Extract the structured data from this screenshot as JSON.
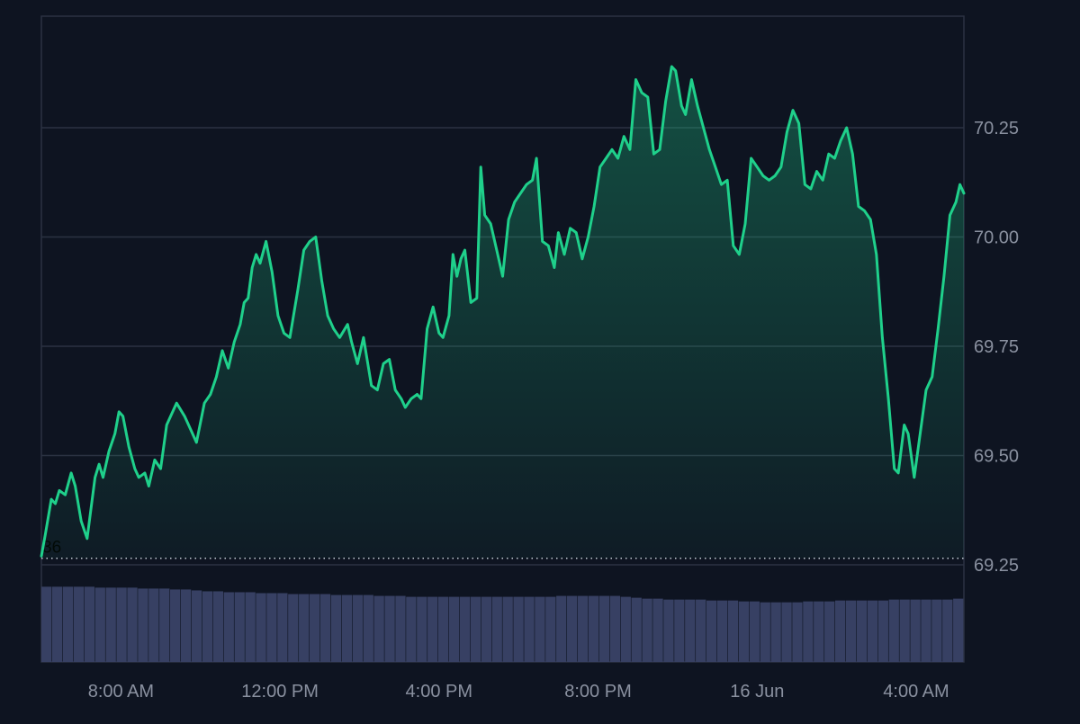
{
  "colors": {
    "background": "#0e1421",
    "line": "#1fd08b",
    "area_top": "#1fd08b",
    "grid": "#2b3242",
    "axis_text": "#8a91a0",
    "volume": "#374063",
    "baseline_dots": "#c7ccd6"
  },
  "chart_data": {
    "type": "area",
    "title": "",
    "xlabel": "",
    "ylabel": "",
    "ylim": [
      69.0,
      70.5
    ],
    "y_ticks": [
      {
        "value": 69.25,
        "label": "69.25"
      },
      {
        "value": 69.5,
        "label": "69.50"
      },
      {
        "value": 69.75,
        "label": "69.75"
      },
      {
        "value": 70.0,
        "label": "70.00"
      },
      {
        "value": 70.25,
        "label": "70.25"
      }
    ],
    "x_range": [
      6.0,
      29.2
    ],
    "x_ticks": [
      {
        "value": 8,
        "label": "8:00 AM"
      },
      {
        "value": 12,
        "label": "12:00 PM"
      },
      {
        "value": 16,
        "label": "4:00 PM"
      },
      {
        "value": 20,
        "label": "8:00 PM"
      },
      {
        "value": 24,
        "label": "16 Jun"
      },
      {
        "value": 28,
        "label": "4:00 AM"
      }
    ],
    "baseline": {
      "value": 69.265,
      "label": "36"
    },
    "series": [
      {
        "values": [
          [
            6.0,
            69.27
          ],
          [
            6.1,
            69.32
          ],
          [
            6.25,
            69.4
          ],
          [
            6.35,
            69.39
          ],
          [
            6.45,
            69.42
          ],
          [
            6.6,
            69.41
          ],
          [
            6.75,
            69.46
          ],
          [
            6.85,
            69.43
          ],
          [
            7.0,
            69.35
          ],
          [
            7.15,
            69.31
          ],
          [
            7.25,
            69.38
          ],
          [
            7.35,
            69.45
          ],
          [
            7.45,
            69.48
          ],
          [
            7.55,
            69.45
          ],
          [
            7.7,
            69.51
          ],
          [
            7.85,
            69.55
          ],
          [
            7.95,
            69.6
          ],
          [
            8.05,
            69.59
          ],
          [
            8.2,
            69.52
          ],
          [
            8.35,
            69.47
          ],
          [
            8.45,
            69.45
          ],
          [
            8.6,
            69.46
          ],
          [
            8.7,
            69.43
          ],
          [
            8.85,
            69.49
          ],
          [
            9.0,
            69.47
          ],
          [
            9.15,
            69.57
          ],
          [
            9.25,
            69.59
          ],
          [
            9.4,
            69.62
          ],
          [
            9.6,
            69.59
          ],
          [
            9.75,
            69.56
          ],
          [
            9.9,
            69.53
          ],
          [
            10.1,
            69.62
          ],
          [
            10.25,
            69.64
          ],
          [
            10.4,
            69.68
          ],
          [
            10.55,
            69.74
          ],
          [
            10.7,
            69.7
          ],
          [
            10.85,
            69.76
          ],
          [
            11.0,
            69.8
          ],
          [
            11.1,
            69.85
          ],
          [
            11.2,
            69.86
          ],
          [
            11.3,
            69.93
          ],
          [
            11.4,
            69.96
          ],
          [
            11.5,
            69.94
          ],
          [
            11.65,
            69.99
          ],
          [
            11.8,
            69.92
          ],
          [
            11.95,
            69.82
          ],
          [
            12.1,
            69.78
          ],
          [
            12.25,
            69.77
          ],
          [
            12.45,
            69.88
          ],
          [
            12.6,
            69.97
          ],
          [
            12.75,
            69.99
          ],
          [
            12.9,
            70.0
          ],
          [
            13.05,
            69.9
          ],
          [
            13.2,
            69.82
          ],
          [
            13.35,
            69.79
          ],
          [
            13.5,
            69.77
          ],
          [
            13.7,
            69.8
          ],
          [
            13.8,
            69.76
          ],
          [
            13.95,
            69.71
          ],
          [
            14.1,
            69.77
          ],
          [
            14.3,
            69.66
          ],
          [
            14.45,
            69.65
          ],
          [
            14.6,
            69.71
          ],
          [
            14.75,
            69.72
          ],
          [
            14.9,
            69.65
          ],
          [
            15.05,
            69.63
          ],
          [
            15.15,
            69.61
          ],
          [
            15.3,
            69.63
          ],
          [
            15.45,
            69.64
          ],
          [
            15.55,
            69.63
          ],
          [
            15.7,
            69.79
          ],
          [
            15.85,
            69.84
          ],
          [
            16.0,
            69.78
          ],
          [
            16.1,
            69.77
          ],
          [
            16.25,
            69.82
          ],
          [
            16.35,
            69.96
          ],
          [
            16.45,
            69.91
          ],
          [
            16.55,
            69.95
          ],
          [
            16.65,
            69.97
          ],
          [
            16.8,
            69.85
          ],
          [
            16.95,
            69.86
          ],
          [
            17.05,
            70.16
          ],
          [
            17.15,
            70.05
          ],
          [
            17.3,
            70.03
          ],
          [
            17.45,
            69.97
          ],
          [
            17.6,
            69.91
          ],
          [
            17.75,
            70.04
          ],
          [
            17.9,
            70.08
          ],
          [
            18.05,
            70.1
          ],
          [
            18.2,
            70.12
          ],
          [
            18.35,
            70.13
          ],
          [
            18.45,
            70.18
          ],
          [
            18.6,
            69.99
          ],
          [
            18.75,
            69.98
          ],
          [
            18.9,
            69.93
          ],
          [
            19.0,
            70.01
          ],
          [
            19.15,
            69.96
          ],
          [
            19.3,
            70.02
          ],
          [
            19.45,
            70.01
          ],
          [
            19.6,
            69.95
          ],
          [
            19.75,
            70.0
          ],
          [
            19.9,
            70.07
          ],
          [
            20.05,
            70.16
          ],
          [
            20.2,
            70.18
          ],
          [
            20.35,
            70.2
          ],
          [
            20.5,
            70.18
          ],
          [
            20.65,
            70.23
          ],
          [
            20.8,
            70.2
          ],
          [
            20.95,
            70.36
          ],
          [
            21.1,
            70.33
          ],
          [
            21.25,
            70.32
          ],
          [
            21.4,
            70.19
          ],
          [
            21.55,
            70.2
          ],
          [
            21.7,
            70.31
          ],
          [
            21.85,
            70.39
          ],
          [
            21.95,
            70.38
          ],
          [
            22.1,
            70.3
          ],
          [
            22.2,
            70.28
          ],
          [
            22.35,
            70.36
          ],
          [
            22.5,
            70.3
          ],
          [
            22.65,
            70.25
          ],
          [
            22.8,
            70.2
          ],
          [
            22.95,
            70.16
          ],
          [
            23.1,
            70.12
          ],
          [
            23.25,
            70.13
          ],
          [
            23.4,
            69.98
          ],
          [
            23.55,
            69.96
          ],
          [
            23.7,
            70.03
          ],
          [
            23.85,
            70.18
          ],
          [
            24.0,
            70.16
          ],
          [
            24.15,
            70.14
          ],
          [
            24.3,
            70.13
          ],
          [
            24.45,
            70.14
          ],
          [
            24.6,
            70.16
          ],
          [
            24.75,
            70.24
          ],
          [
            24.9,
            70.29
          ],
          [
            25.05,
            70.26
          ],
          [
            25.2,
            70.12
          ],
          [
            25.35,
            70.11
          ],
          [
            25.5,
            70.15
          ],
          [
            25.65,
            70.13
          ],
          [
            25.8,
            70.19
          ],
          [
            25.95,
            70.18
          ],
          [
            26.1,
            70.22
          ],
          [
            26.25,
            70.25
          ],
          [
            26.4,
            70.19
          ],
          [
            26.55,
            70.07
          ],
          [
            26.7,
            70.06
          ],
          [
            26.85,
            70.04
          ],
          [
            27.0,
            69.96
          ],
          [
            27.15,
            69.77
          ],
          [
            27.3,
            69.63
          ],
          [
            27.45,
            69.47
          ],
          [
            27.55,
            69.46
          ],
          [
            27.7,
            69.57
          ],
          [
            27.8,
            69.55
          ],
          [
            27.95,
            69.45
          ],
          [
            28.1,
            69.55
          ],
          [
            28.25,
            69.65
          ],
          [
            28.4,
            69.68
          ],
          [
            28.55,
            69.79
          ],
          [
            28.7,
            69.91
          ],
          [
            28.85,
            70.05
          ],
          [
            29.0,
            70.08
          ],
          [
            29.1,
            70.12
          ],
          [
            29.2,
            70.1
          ]
        ]
      }
    ],
    "volume": {
      "label": "",
      "values": [
        82,
        82,
        82,
        82,
        82,
        81,
        81,
        81,
        81,
        80,
        80,
        80,
        79,
        79,
        78,
        77,
        77,
        76,
        76,
        76,
        75,
        75,
        75,
        74,
        74,
        74,
        74,
        73,
        73,
        73,
        73,
        72,
        72,
        72,
        71,
        71,
        71,
        71,
        71,
        71,
        71,
        71,
        71,
        71,
        71,
        71,
        71,
        71,
        72,
        72,
        72,
        72,
        72,
        72,
        71,
        70,
        69,
        69,
        68,
        68,
        68,
        68,
        67,
        67,
        67,
        66,
        66,
        65,
        65,
        65,
        65,
        66,
        66,
        66,
        67,
        67,
        67,
        67,
        67,
        68,
        68,
        68,
        68,
        68,
        68,
        69
      ]
    }
  }
}
